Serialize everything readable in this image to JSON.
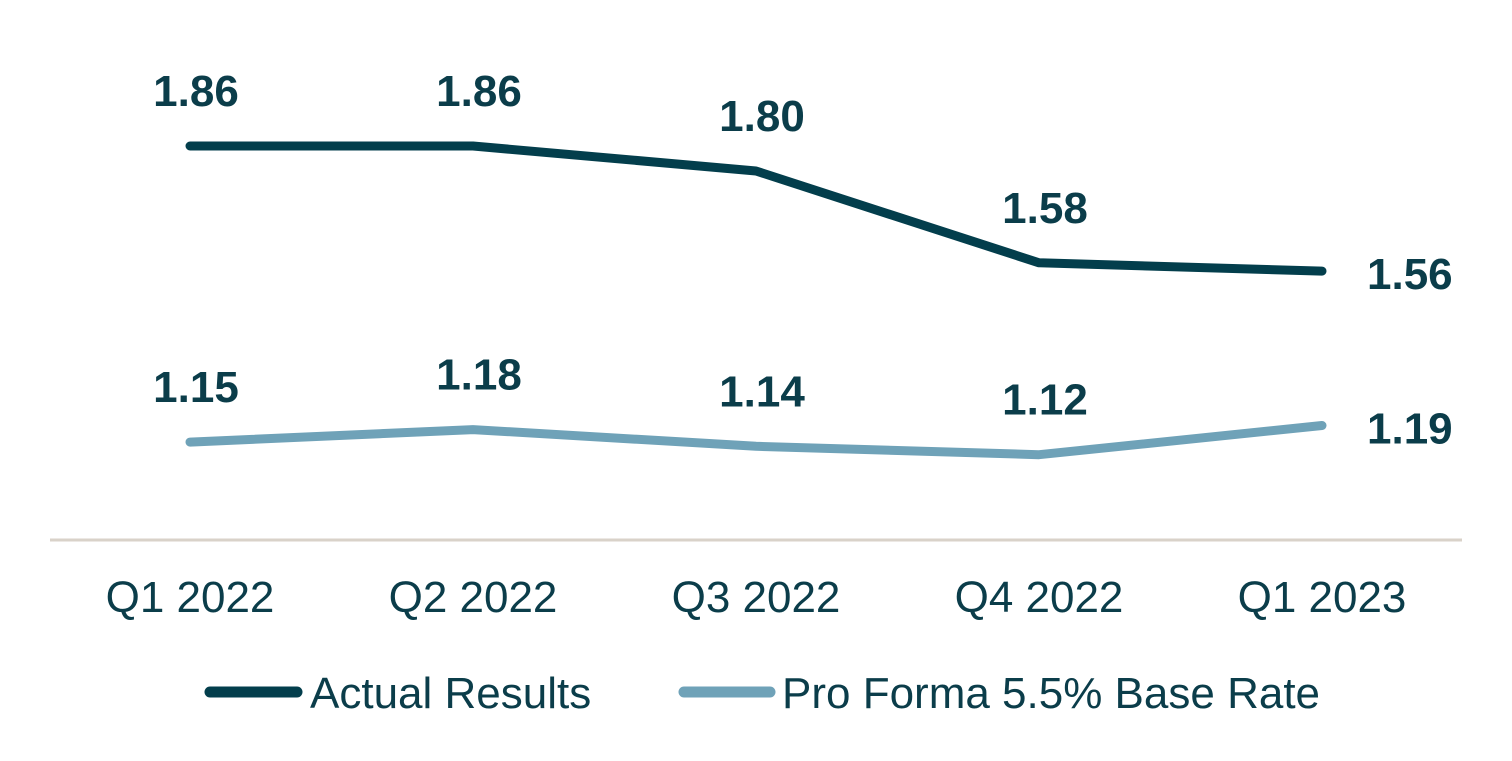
{
  "chart_data": {
    "type": "line",
    "categories": [
      "Q1 2022",
      "Q2 2022",
      "Q3 2022",
      "Q4 2022",
      "Q1 2023"
    ],
    "series": [
      {
        "name": "Actual Results",
        "values": [
          1.86,
          1.86,
          1.8,
          1.58,
          1.56
        ],
        "labels": [
          "1.86",
          "1.86",
          "1.80",
          "1.58",
          "1.56"
        ],
        "color": "#033e4c"
      },
      {
        "name": "Pro Forma 5.5% Base Rate",
        "values": [
          1.15,
          1.18,
          1.14,
          1.12,
          1.19
        ],
        "labels": [
          "1.15",
          "1.18",
          "1.14",
          "1.12",
          "1.19"
        ],
        "color": "#6fa2b8"
      }
    ],
    "legend_position": "bottom-center",
    "grid": false,
    "axis_color": "#d9d2c9",
    "text_color": "#0b3d4a"
  }
}
